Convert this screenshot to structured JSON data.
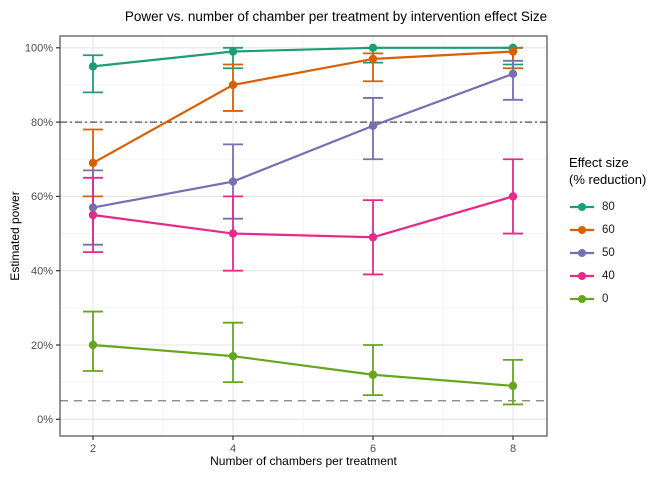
{
  "chart_data": {
    "type": "line",
    "title": "Power vs. number of chamber per treatment by intervention effect Size",
    "xlabel": "Number of chambers per treatment",
    "ylabel": "Estimated power",
    "x": [
      2,
      4,
      6,
      8
    ],
    "x_ticks": [
      2,
      4,
      6,
      8
    ],
    "x_minor_ticks": [
      3,
      5,
      7
    ],
    "y_ticks": [
      0,
      20,
      40,
      60,
      80,
      100
    ],
    "y_minor_ticks": [
      10,
      30,
      50,
      70,
      90
    ],
    "y_tick_labels": [
      "0%",
      "20%",
      "40%",
      "60%",
      "80%",
      "100%"
    ],
    "ylim": [
      0,
      100
    ],
    "grid": true,
    "legend": {
      "title_line1": "Effect size",
      "title_line2": "(% reduction)",
      "position": "right"
    },
    "reference_lines": [
      {
        "y": 80,
        "style": "dash-dot",
        "color": "#4D4D4D"
      },
      {
        "y": 5,
        "style": "dashed",
        "color": "#7F7F7F"
      }
    ],
    "series": [
      {
        "name": "80",
        "color": "#1B9E77",
        "values": [
          95,
          99,
          100,
          100
        ],
        "err_low": [
          88,
          94.5,
          96,
          95.5
        ],
        "err_high": [
          98,
          100,
          100,
          100
        ]
      },
      {
        "name": "60",
        "color": "#D95F02",
        "values": [
          69,
          90,
          97,
          99
        ],
        "err_low": [
          60,
          83,
          91,
          94.5
        ],
        "err_high": [
          78,
          95.5,
          98.5,
          100
        ]
      },
      {
        "name": "50",
        "color": "#7570B3",
        "values": [
          57,
          64,
          79,
          93
        ],
        "err_low": [
          47,
          54,
          70,
          86
        ],
        "err_high": [
          67,
          74,
          86.5,
          96.5
        ]
      },
      {
        "name": "40",
        "color": "#E7298A",
        "values": [
          55,
          50,
          49,
          60
        ],
        "err_low": [
          45,
          40,
          39,
          50
        ],
        "err_high": [
          65,
          60,
          59,
          70
        ]
      },
      {
        "name": "0",
        "color": "#66A61E",
        "values": [
          20,
          17,
          12,
          9
        ],
        "err_low": [
          13,
          10,
          6.5,
          4
        ],
        "err_high": [
          29,
          26,
          20,
          16
        ]
      }
    ]
  }
}
